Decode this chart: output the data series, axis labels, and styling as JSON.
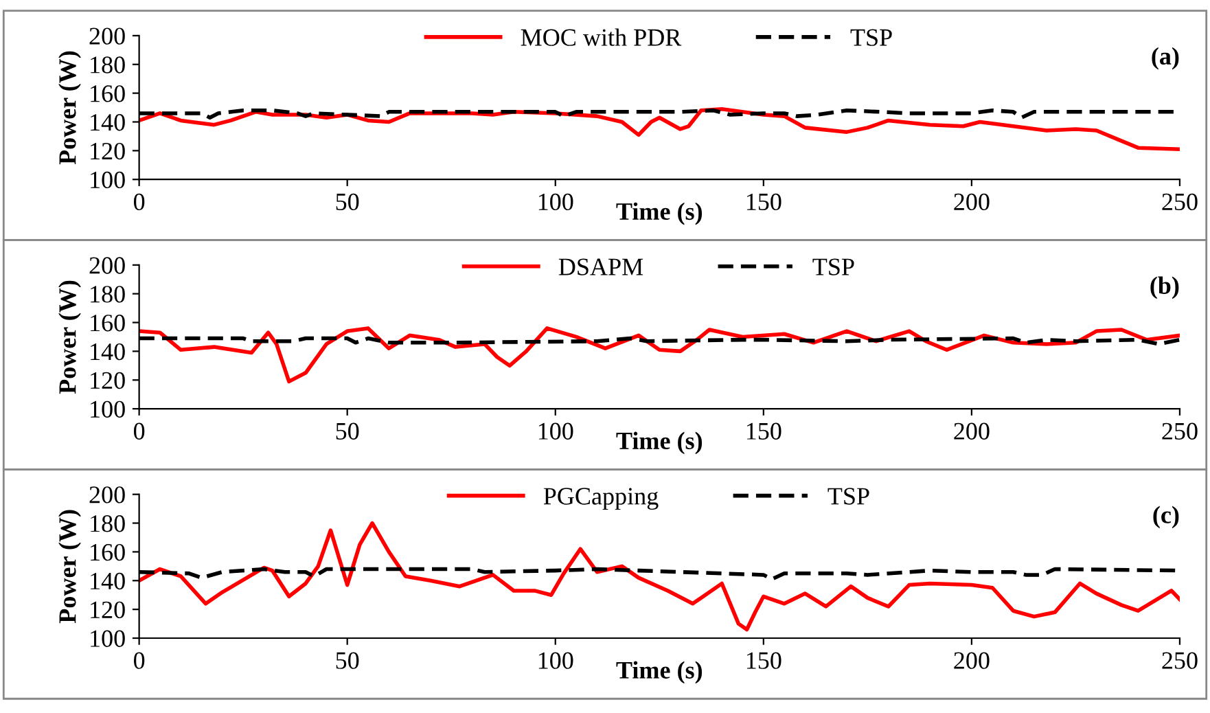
{
  "chart_data": [
    {
      "type": "line",
      "xlabel": "Time (s)",
      "ylabel": "Power (W)",
      "annotations": [
        "(a)"
      ],
      "xlim": [
        0,
        250
      ],
      "xticks": [
        0,
        50,
        100,
        150,
        200,
        250
      ],
      "ylim": [
        100,
        200
      ],
      "yticks": [
        100,
        120,
        140,
        160,
        180,
        200
      ],
      "grid": false,
      "legend": "top",
      "series": [
        {
          "name": "MOC with PDR",
          "color": "#ff0000",
          "line_style": "solid",
          "x": [
            0,
            5,
            10,
            18,
            22,
            28,
            32,
            40,
            45,
            50,
            55,
            60,
            65,
            80,
            85,
            90,
            100,
            110,
            116,
            120,
            123,
            125,
            130,
            132,
            135,
            140,
            150,
            155,
            160,
            170,
            175,
            180,
            190,
            198,
            202,
            210,
            218,
            225,
            230,
            235,
            240,
            250
          ],
          "values": [
            141,
            146,
            141,
            138,
            141,
            147,
            145,
            145,
            143,
            145,
            141,
            140,
            146,
            146,
            145,
            147,
            146,
            144,
            140,
            131,
            140,
            143,
            135,
            137,
            148,
            149,
            145,
            144,
            136,
            133,
            136,
            141,
            138,
            137,
            140,
            137,
            134,
            135,
            134,
            128,
            122,
            121
          ]
        },
        {
          "name": "TSP",
          "color": "#000000",
          "line_style": "dashed",
          "x": [
            0,
            15,
            17,
            19,
            25,
            32,
            38,
            40,
            42,
            50,
            58,
            60,
            80,
            100,
            102,
            105,
            130,
            138,
            142,
            150,
            155,
            158,
            163,
            170,
            178,
            185,
            200,
            205,
            210,
            212,
            215,
            250
          ],
          "values": [
            146,
            146,
            143,
            146,
            148,
            148,
            146,
            144,
            146,
            145,
            144,
            147,
            147,
            147,
            144,
            147,
            147,
            148,
            145,
            146,
            146,
            144,
            145,
            148,
            147,
            146,
            146,
            148,
            147,
            143,
            147,
            147
          ]
        }
      ]
    },
    {
      "type": "line",
      "xlabel": "Time (s)",
      "ylabel": "Power (W)",
      "annotations": [
        "(b)"
      ],
      "xlim": [
        0,
        250
      ],
      "xticks": [
        0,
        50,
        100,
        150,
        200,
        250
      ],
      "ylim": [
        100,
        200
      ],
      "yticks": [
        100,
        120,
        140,
        160,
        180,
        200
      ],
      "grid": false,
      "legend": "top",
      "series": [
        {
          "name": "DSAPM",
          "color": "#ff0000",
          "line_style": "solid",
          "x": [
            0,
            5,
            10,
            18,
            27,
            31,
            33,
            36,
            40,
            45,
            50,
            55,
            60,
            65,
            72,
            76,
            83,
            86,
            89,
            93,
            98,
            105,
            112,
            120,
            125,
            130,
            134,
            137,
            145,
            155,
            162,
            170,
            177,
            185,
            189,
            194,
            203,
            210,
            218,
            225,
            230,
            236,
            242,
            250
          ],
          "values": [
            154,
            153,
            141,
            143,
            139,
            153,
            145,
            119,
            125,
            145,
            154,
            156,
            142,
            151,
            148,
            143,
            145,
            136,
            130,
            140,
            156,
            150,
            142,
            151,
            141,
            140,
            148,
            155,
            150,
            152,
            146,
            154,
            147,
            154,
            147,
            141,
            151,
            146,
            145,
            146,
            154,
            155,
            148,
            151
          ]
        },
        {
          "name": "TSP",
          "color": "#000000",
          "line_style": "dashed",
          "x": [
            0,
            25,
            27,
            35,
            37,
            40,
            50,
            52,
            55,
            60,
            75,
            110,
            118,
            122,
            145,
            150,
            170,
            180,
            210,
            213,
            218,
            225,
            240,
            245,
            250
          ],
          "values": [
            149,
            149,
            147,
            147,
            147,
            149,
            149,
            146,
            149,
            146,
            146,
            147,
            149,
            147,
            148,
            148,
            147,
            148,
            149,
            146,
            148,
            147,
            148,
            145,
            148
          ]
        }
      ]
    },
    {
      "type": "line",
      "xlabel": "Time (s)",
      "ylabel": "Power (W)",
      "annotations": [
        "(c)"
      ],
      "xlim": [
        0,
        250
      ],
      "xticks": [
        0,
        50,
        100,
        150,
        200,
        250
      ],
      "ylim": [
        100,
        200
      ],
      "yticks": [
        100,
        120,
        140,
        160,
        180,
        200
      ],
      "grid": false,
      "legend": "top",
      "series": [
        {
          "name": "PGCapping",
          "color": "#ff0000",
          "line_style": "solid",
          "x": [
            0,
            5,
            10,
            16,
            20,
            30,
            32,
            36,
            40,
            43,
            46,
            50,
            53,
            56,
            60,
            64,
            70,
            77,
            85,
            90,
            95,
            99,
            102,
            106,
            110,
            116,
            120,
            127,
            133,
            140,
            144,
            146,
            148,
            150,
            155,
            160,
            165,
            171,
            175,
            180,
            185,
            190,
            200,
            205,
            210,
            215,
            220,
            226,
            230,
            236,
            240,
            248,
            250
          ],
          "values": [
            140,
            148,
            143,
            124,
            132,
            149,
            147,
            129,
            138,
            150,
            175,
            137,
            165,
            180,
            160,
            143,
            140,
            136,
            144,
            133,
            133,
            130,
            145,
            162,
            146,
            150,
            142,
            133,
            124,
            138,
            110,
            106,
            118,
            129,
            124,
            131,
            122,
            136,
            128,
            122,
            137,
            138,
            137,
            135,
            119,
            115,
            118,
            138,
            131,
            123,
            119,
            133,
            127
          ]
        },
        {
          "name": "TSP",
          "color": "#000000",
          "line_style": "dashed",
          "x": [
            0,
            12,
            15,
            20,
            30,
            35,
            40,
            42,
            45,
            80,
            83,
            100,
            110,
            120,
            140,
            150,
            152,
            155,
            170,
            175,
            190,
            200,
            210,
            213,
            217,
            220,
            250
          ],
          "values": [
            146,
            145,
            142,
            146,
            148,
            146,
            146,
            143,
            148,
            148,
            146,
            147,
            148,
            147,
            145,
            144,
            141,
            145,
            145,
            144,
            147,
            146,
            146,
            144,
            144,
            148,
            147
          ]
        }
      ]
    }
  ]
}
